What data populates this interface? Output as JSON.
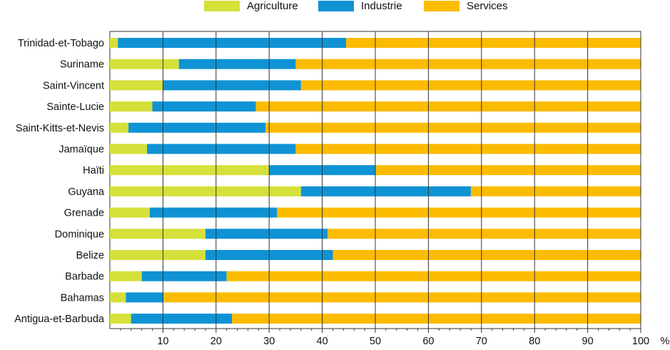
{
  "chart_data": {
    "type": "bar",
    "orientation": "horizontal",
    "stacked": true,
    "xlabel": "%",
    "xlim": [
      0,
      100
    ],
    "xticks": [
      10,
      20,
      30,
      40,
      50,
      60,
      70,
      80,
      90,
      100
    ],
    "grid": "vertical",
    "legend_position": "top",
    "categories": [
      "Trinidad-et-Tobago",
      "Suriname",
      "Saint-Vincent",
      "Sainte-Lucie",
      "Saint-Kitts-et-Nevis",
      "Jamaïque",
      "Haïti",
      "Guyana",
      "Grenade",
      "Dominique",
      "Belize",
      "Barbade",
      "Bahamas",
      "Antigua-et-Barbuda"
    ],
    "series": [
      {
        "name": "Agriculture",
        "color": "#d5e03a",
        "values": [
          1.5,
          13,
          10,
          8,
          3.5,
          7,
          30,
          36,
          7.5,
          18,
          18,
          6,
          3,
          4
        ]
      },
      {
        "name": "Industrie",
        "color": "#0f93d4",
        "values": [
          43,
          22,
          26,
          19.5,
          25.8,
          28,
          20,
          32,
          24,
          23,
          24,
          16,
          7,
          19
        ]
      },
      {
        "name": "Services",
        "color": "#fbbb00",
        "values": [
          55.5,
          65,
          64,
          72.5,
          70.7,
          65,
          50,
          32,
          68.5,
          59,
          58,
          78,
          90,
          77
        ]
      }
    ]
  }
}
